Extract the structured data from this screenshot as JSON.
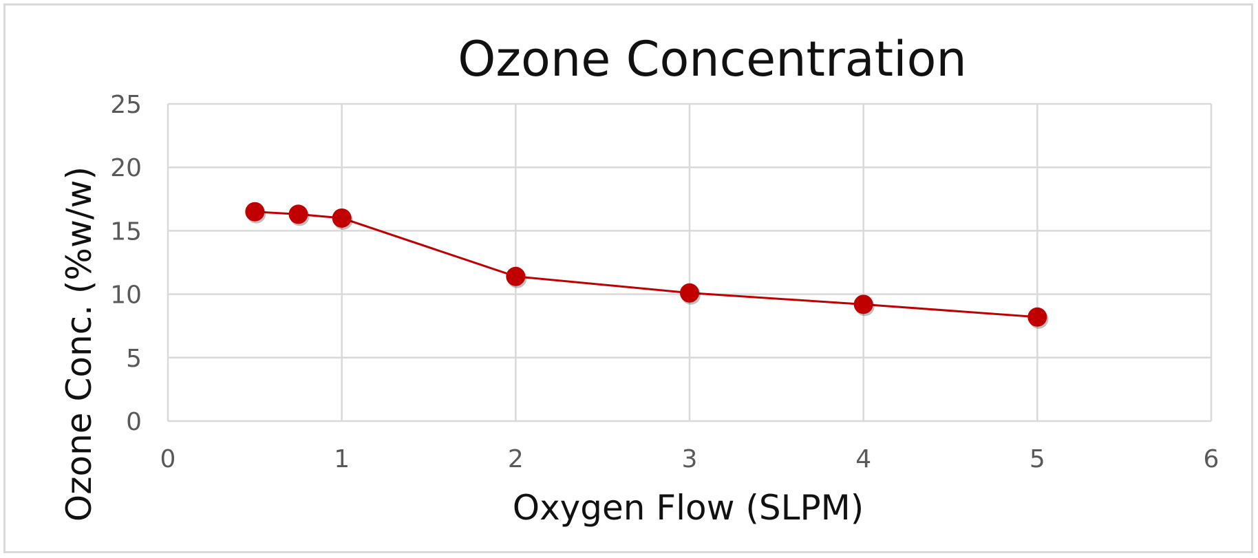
{
  "chart_data": {
    "type": "line",
    "title": "Ozone Concentration",
    "xlabel": "Oxygen Flow (SLPM)",
    "ylabel": "Ozone Conc. (%w/w)",
    "xlim": [
      0,
      6
    ],
    "ylim": [
      0,
      25
    ],
    "xticks": [
      0,
      1,
      2,
      3,
      4,
      5,
      6
    ],
    "yticks": [
      0,
      5,
      10,
      15,
      20,
      25
    ],
    "grid": true,
    "legend": "none",
    "series": [
      {
        "color": "#c00000",
        "x": [
          0.5,
          0.75,
          1,
          2,
          3,
          4,
          5
        ],
        "y": [
          16.5,
          16.3,
          16.0,
          11.4,
          10.1,
          9.2,
          8.2
        ]
      }
    ]
  }
}
